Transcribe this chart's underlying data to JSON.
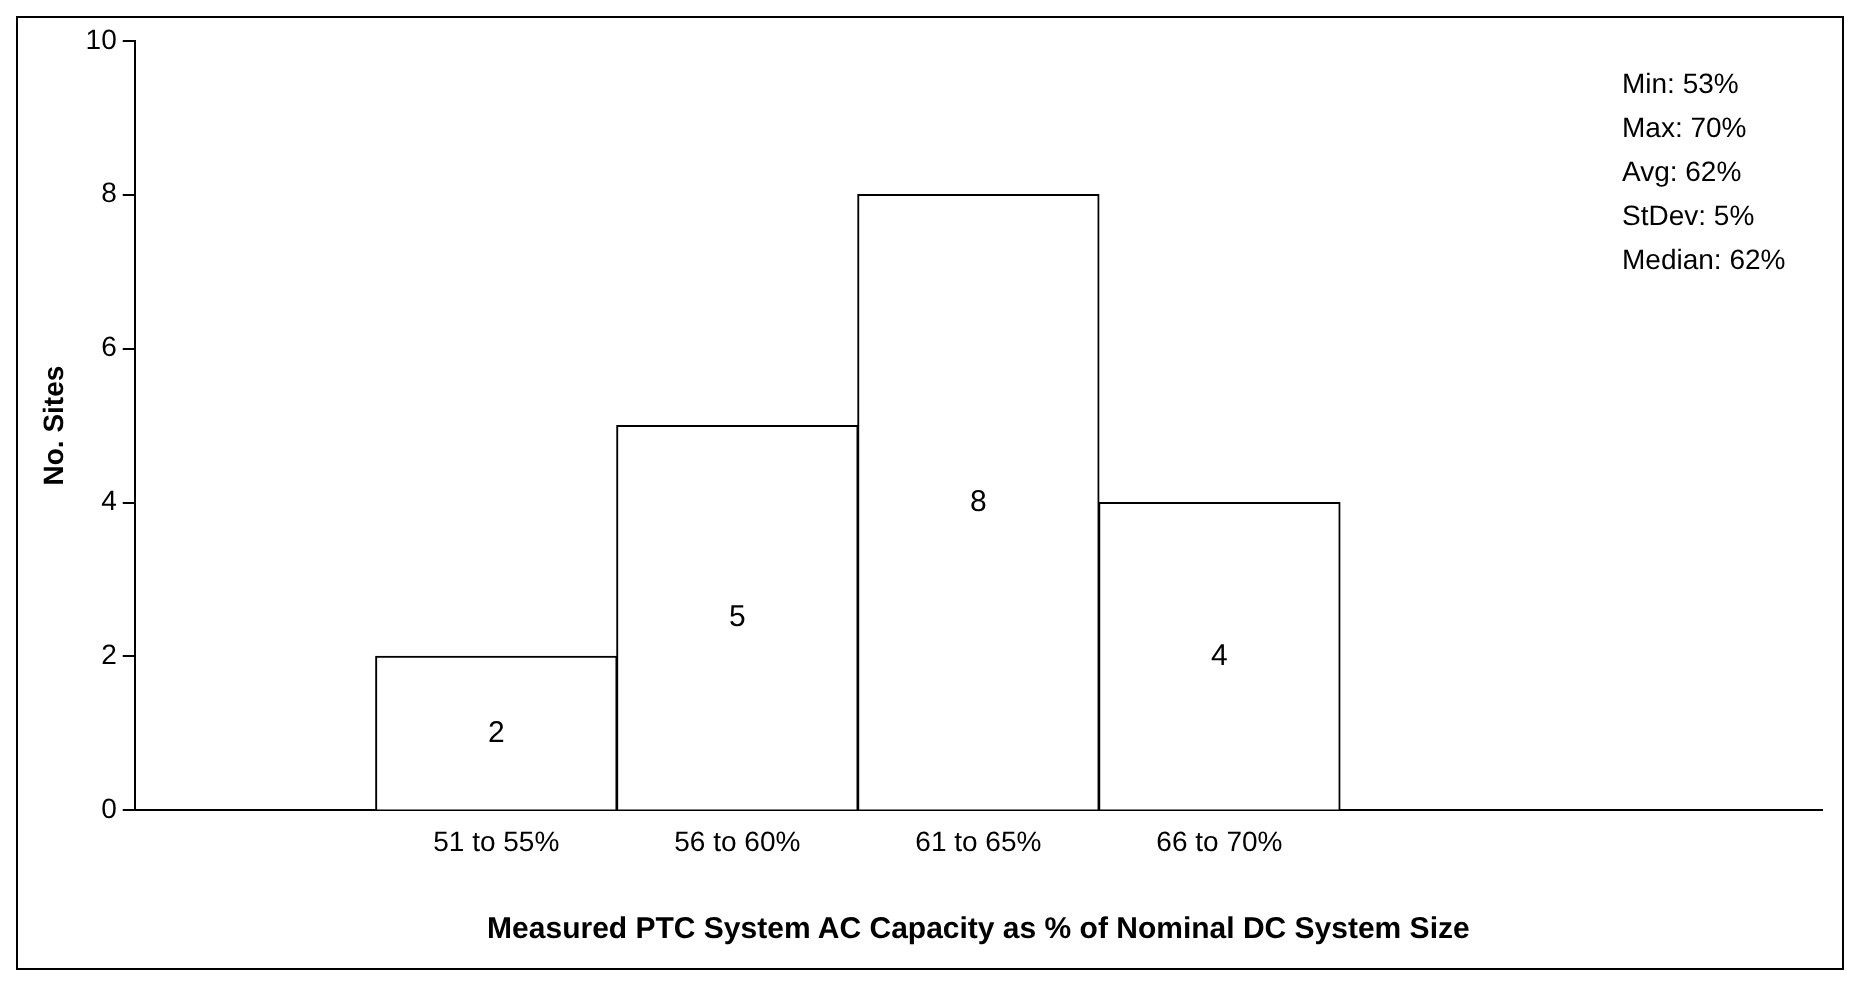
{
  "chart_data": {
    "type": "bar",
    "categories": [
      null,
      "51 to 55%",
      "56 to 60%",
      "61 to 65%",
      "66 to 70%",
      null,
      null
    ],
    "values": [
      null,
      2,
      5,
      8,
      4,
      null,
      null
    ],
    "color": "#ffffff",
    "ylabel": "No. Sites",
    "xlabel": "Measured PTC System AC Capacity as % of Nominal DC System Size",
    "ylim": [
      0,
      10
    ],
    "yticks": [
      0,
      2,
      4,
      6,
      8,
      10
    ],
    "grid": false,
    "legend": false,
    "data_labels": true,
    "annotations": [
      "Min: 53%",
      "Max: 70%",
      "Avg: 62%",
      "StDev: 5%",
      "Median: 62%"
    ]
  }
}
